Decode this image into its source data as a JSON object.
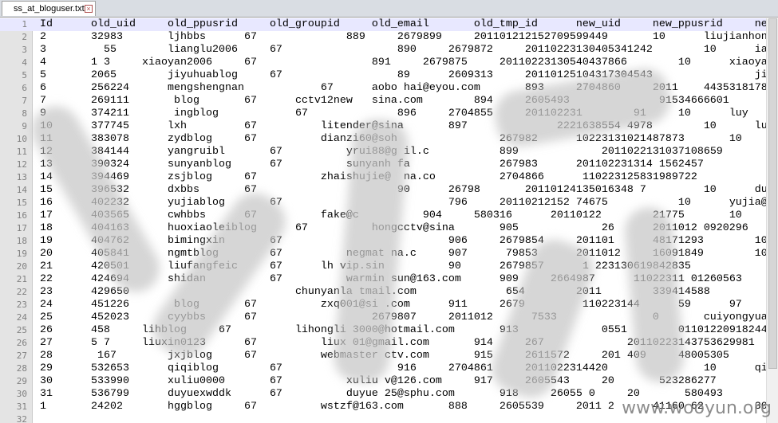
{
  "tab": {
    "title": "ss_at_bloguser.txt"
  },
  "watermark": "www.wooyun.org",
  "lines": [
    {
      "num": "1",
      "text": "Id\t\told_uid\t\told_ppusrid\t\told_groupid\t\told_email\t\told_tmp_id\t\tnew_uid\t\tnew_ppusrid\t\tnew_"
    },
    {
      "num": "2",
      "text": "2\t\t32983\t\tljhbbs\t\t67\t\t\t\t889\t\t2679899\t\t201101212152709599449\t\t10\t\tliujianhong"
    },
    {
      "num": "3",
      "text": "3\t\t  55\t\tlianglu2006\t\t67\t\t\t\t\t890\t\t2679872\t\t20110223130405341242\t\t10\t\tianglu"
    },
    {
      "num": "4",
      "text": "4\t\t1 3\t\txiaoyan2006\t\t67\t\t\t\t\t891\t\t2679875\t\t20110223130540437866\t\t10\t\txiaoyan"
    },
    {
      "num": "5",
      "text": "5\t\t2065\t\tjiyuhuablog\t\t67\t\t\t\t\t89\t\t2609313\t\t20110125104317304543\t\t\t\tjiyuhua"
    },
    {
      "num": "6",
      "text": "6\t\t256224\t\tmengshengnan\t\t\t67\t\taobo hai@eyou.com\t\t893\t\t2704860\t\t2011\t44353181787"
    },
    {
      "num": "7",
      "text": "7\t\t269111\t\t blog\t\t67\t\tcctv12new\tsina.com\t\t894\t\t2605493\t\t\t\t 91534666601"
    },
    {
      "num": "8",
      "text": "9\t\t374211\t\t ingblog\t\t\t67\t\t\t\t896\t\t2704855\t\t201102231\t\t 91\t\t10\t\tluy"
    },
    {
      "num": "9",
      "text": "10\t\t377745\t\tlxh\t\t\t67\t\t\tlitender@sina\t\t897\t\t\t\t 2221638554 4978\t\t10\t\tlu"
    },
    {
      "num": "10",
      "text": "11\t\t383078\t\tzydblog\t\t67\t\t\tdianzi60@soh\t\t\t\t267982\t\t10223131021487873\t\t10"
    },
    {
      "num": "11",
      "text": "12\t\t384144\t\tyangruibl\t\t67\t\t\tyrui88@g il.c\t\t\t899\t\t\t\t2011022131037108659"
    },
    {
      "num": "12",
      "text": "13\t\t390324\t\tsunyanblog\t\t67\t\t\tsunyanh fa\t\t\t\t267983\t\t201102231314 1562457"
    },
    {
      "num": "13",
      "text": "14\t\t394469\t\tzsjblog\t\t67\t\t\tzhaishujie@\t na.co\t\t\t2704866\t\t 110223125831989722"
    },
    {
      "num": "14",
      "text": "15\t\t396532\t\tdxbbs\t\t67\t\t\t\t\t\t90\t\t26798\t\t20110124135016348 7\t\t\t10\t\tduanxuan@vi"
    },
    {
      "num": "15",
      "text": "16\t\t402232\t\tyujiablog\t\t67\t\t\t\t\t\t\t796\t\t20110212152 74675\t\t\t10\t\tyujia@v"
    },
    {
      "num": "16",
      "text": "17\t\t403565\t\tcwhbbs\t\t67\t\t\tfake@c\t\t\t904\t\t580316\t\t20110122\t\t21775\t\t10\t\tche"
    },
    {
      "num": "17",
      "text": "18\t\t404163\t\thuoxiaoleiblog\t\t67\t\t\thongcctv@sina\t\t905\t\t\t\t26\t\t2011012 0920296"
    },
    {
      "num": "18",
      "text": "19\t\t404762\t\tbimingxin\t\t67\t\t\t\t\t\t\t906\t\t2679854\t\t201101\t\t48171293\t\t10"
    },
    {
      "num": "19",
      "text": "20\t\t405841\t\tngmtblog\t\t67\t\t\tnegmat na.c\t\t907\t\t 79853\t\t2011012\t\t16091849\t\t10"
    },
    {
      "num": "20",
      "text": "21\t\t420501\t\tliufangfeic\t\t67\t\tlh vip.sin\t\t\t90\t\t2679857\t\t 1 223130619842835"
    },
    {
      "num": "21",
      "text": "22\t\t424694\t\tshidan\t\t\t67\t\t\twarmin sun@163.com\t\t909\t\t2664987\t\t 11022311 01260563"
    },
    {
      "num": "22",
      "text": "23\t\t429650\t\t\t\t\t\t\tchunyanla tmail.com\t\t\t\t 654\t\t2011\t\t339414588"
    },
    {
      "num": "23",
      "text": "24\t\t451226\t\t blog\t\t67\t\t\tzxq001@si .com\t\t911\t\t2679\t\t 110223144\t\t59\t\t97\t\t10"
    },
    {
      "num": "24",
      "text": "25\t\t452023\t\tcyybbs\t\t67\t\t\t\t\t2679807\t\t2011012\t\t 7533\t\t\t\t0\t\tcuiyongyuan"
    },
    {
      "num": "25",
      "text": "26\t\t458\t\tlihblog\t\t67\t\t\tlihongli 3000@hotmail.com\t\t913\t\t\t\t0551\t\t01101220918244 296"
    },
    {
      "num": "26",
      "text": "27\t\t5 7\t\tliuxin0123\t\t67\t\t\tliux 01@gmail.com\t\t914\t\t267\t\t\t\t20110223143753629981"
    },
    {
      "num": "27",
      "text": "28\t\t 167\t\tjxjblog\t\t67\t\t\twebmaster ctv.com\t\t915\t\t2611572\t\t201 409\t\t48005305\t\t10"
    },
    {
      "num": "28",
      "text": "29\t\t532653\t\tqiqiblog\t\t67\t\t\t\t\t916\t\t2704861\t\t2011022314420\t\t\t\t10\t\tqiqi@vi"
    },
    {
      "num": "29",
      "text": "30\t\t533990\t\txuliu0000\t\t67\t\t\txuliu v@126.com\t\t917\t\t2605543\t\t20\t\t 523286277"
    },
    {
      "num": "30",
      "text": "31\t\t536799\t\tduyuexwddk\t\t67\t\t\tduyue 25@sphu.com\t\t918\t\t26055 0\t\t20\t\t 580493"
    },
    {
      "num": "31",
      "text": "1\t\t24202\t\thggblog\t\t67\t\t\twstzf@163.com\t\t888\t\t2605539\t\t2011 2\t\t41160 62\t\t30"
    },
    {
      "num": "32",
      "text": ""
    }
  ]
}
